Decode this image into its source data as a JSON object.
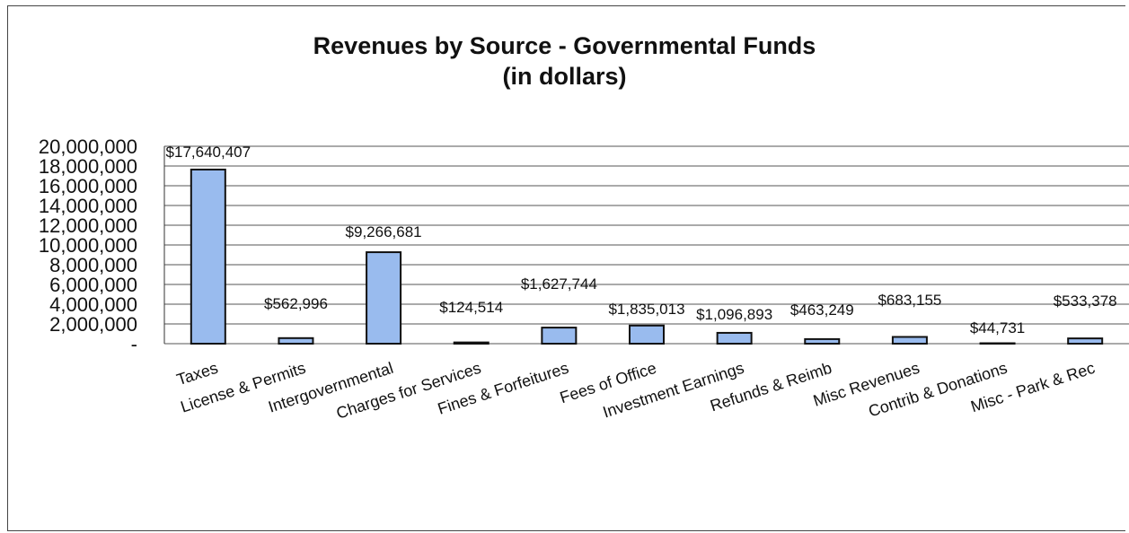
{
  "chart_data": {
    "type": "bar",
    "title": "Revenues by Source - Governmental Funds",
    "subtitle": "(in dollars)",
    "categories": [
      "Taxes",
      "License & Permits",
      "Intergovernmental",
      "Charges for Services",
      "Fines & Forfeitures",
      "Fees of Office",
      "Investment Earnings",
      "Refunds & Reimb",
      "Misc Revenues",
      "Contrib & Donations",
      "Misc - Park & Rec"
    ],
    "values": [
      17640407,
      562996,
      9266681,
      124514,
      1627744,
      1835013,
      1096893,
      463249,
      683155,
      44731,
      533378
    ],
    "data_labels": [
      "$17,640,407",
      "$562,996",
      "$9,266,681",
      "$124,514",
      "$1,627,744",
      "$1,835,013",
      "$1,096,893",
      "$463,249",
      "$683,155",
      "$44,731",
      "$533,378"
    ],
    "y_ticks": [
      0,
      2000000,
      4000000,
      6000000,
      8000000,
      10000000,
      12000000,
      14000000,
      16000000,
      18000000,
      20000000
    ],
    "y_tick_labels": [
      "-",
      "2,000,000",
      "4,000,000",
      "6,000,000",
      "8,000,000",
      "10,000,000",
      "12,000,000",
      "14,000,000",
      "16,000,000",
      "18,000,000",
      "20,000,000"
    ],
    "ylim": [
      0,
      20000000
    ],
    "xlabel": "",
    "ylabel": "",
    "grid": true,
    "legend": "none",
    "bar_color": "#99bbee",
    "bar_edge_color": "#111111"
  }
}
